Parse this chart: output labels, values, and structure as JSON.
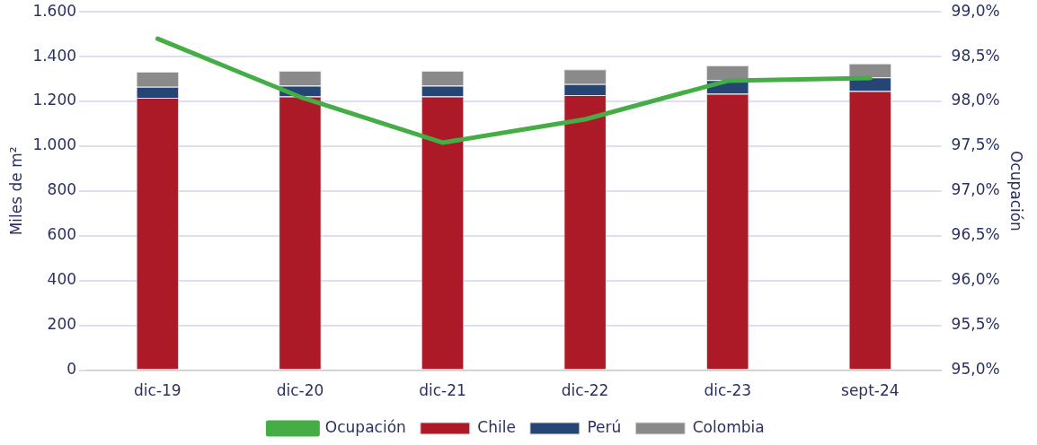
{
  "chart_data": {
    "type": "bar",
    "stacked": true,
    "categories": [
      "dic-19",
      "dic-20",
      "dic-21",
      "dic-22",
      "dic-23",
      "sept-24"
    ],
    "series": [
      {
        "name": "Chile",
        "color": "#ab1a26",
        "values": [
          1216,
          1222,
          1222,
          1228,
          1234,
          1246
        ]
      },
      {
        "name": "Perú",
        "color": "#254675",
        "values": [
          49,
          48,
          48,
          49,
          61,
          61
        ]
      },
      {
        "name": "Colombia",
        "color": "#8a8a8a",
        "values": [
          67,
          66,
          66,
          66,
          65,
          62
        ]
      },
      {
        "name": "Ocupación",
        "type": "line",
        "axis": "y2",
        "color": "#45ad45",
        "values": [
          98.7,
          98.05,
          97.54,
          97.8,
          98.23,
          98.26
        ]
      }
    ],
    "ylabel": "Miles de m²",
    "y2label": "Ocupación",
    "ylim": [
      0,
      1600
    ],
    "yticks": [
      0,
      200,
      400,
      600,
      800,
      {
        "value": 1000,
        "label": "1.000"
      },
      {
        "value": 1200,
        "label": "1.200"
      },
      {
        "value": 1400,
        "label": "1.400"
      },
      {
        "value": 1600,
        "label": "1.600"
      }
    ],
    "y2lim": [
      95,
      99
    ],
    "y2ticks": [
      {
        "value": 95,
        "label": "95,0%"
      },
      {
        "value": 95.5,
        "label": "95,5%"
      },
      {
        "value": 96,
        "label": "96,0%"
      },
      {
        "value": 96.5,
        "label": "96,5%"
      },
      {
        "value": 97,
        "label": "97,0%"
      },
      {
        "value": 97.5,
        "label": "97,5%"
      },
      {
        "value": 98,
        "label": "98,0%"
      },
      {
        "value": 98.5,
        "label": "98,5%"
      },
      {
        "value": 99,
        "label": "99,0%"
      }
    ],
    "grid": "y",
    "legend": "bottom",
    "marker": "none"
  }
}
